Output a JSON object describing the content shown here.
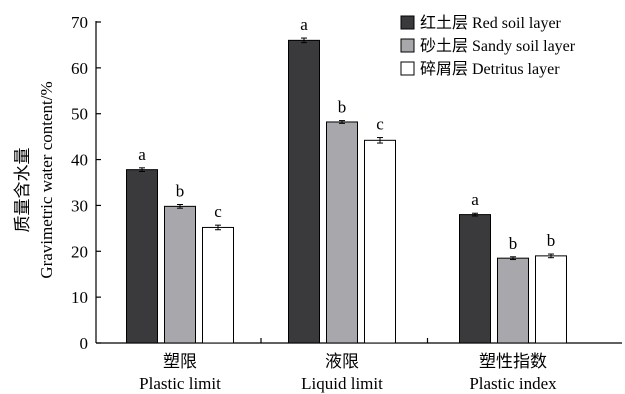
{
  "chart_data": {
    "type": "bar",
    "ylabel_zh": "质量含水量",
    "ylabel": "Gravimetric water content/%",
    "ylim": [
      0,
      70
    ],
    "yticks": [
      0,
      10,
      20,
      30,
      40,
      50,
      60,
      70
    ],
    "categories": [
      {
        "zh": "塑限",
        "en": "Plastic limit"
      },
      {
        "zh": "液限",
        "en": "Liquid limit"
      },
      {
        "zh": "塑性指数",
        "en": "Plastic index"
      }
    ],
    "series": [
      {
        "name": "红土层 Red soil layer",
        "color": "#3a3a3c",
        "values": [
          37.8,
          66.0,
          28.0
        ],
        "errors": [
          0.4,
          0.5,
          0.3
        ],
        "letters": [
          "a",
          "a",
          "a"
        ]
      },
      {
        "name": "砂土层 Sandy soil layer",
        "color": "#a8a7ab",
        "values": [
          29.8,
          48.2,
          18.5
        ],
        "errors": [
          0.4,
          0.3,
          0.3
        ],
        "letters": [
          "b",
          "b",
          "b"
        ]
      },
      {
        "name": "碎屑层 Detritus layer",
        "color": "#ffffff",
        "values": [
          25.2,
          44.2,
          19.0
        ],
        "errors": [
          0.5,
          0.6,
          0.4
        ],
        "letters": [
          "c",
          "c",
          "b"
        ]
      }
    ],
    "legend_position": "top-right",
    "grid": false
  }
}
